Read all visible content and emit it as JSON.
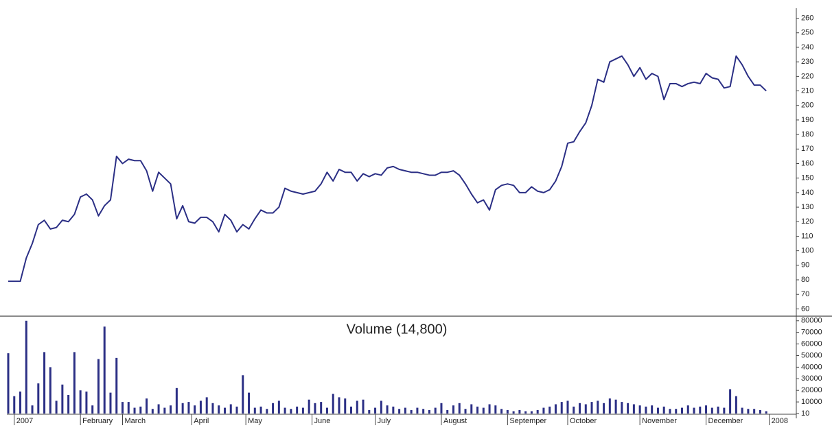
{
  "chart_data": [
    {
      "type": "line",
      "color": "#2b2f85",
      "grid": false,
      "axis_side": "right",
      "xlim": [
        0,
        131
      ],
      "xticks": [
        {
          "value": 1,
          "label": "2007"
        },
        {
          "value": 12,
          "label": "February"
        },
        {
          "value": 19,
          "label": "March"
        },
        {
          "value": 30.5,
          "label": "April"
        },
        {
          "value": 39.5,
          "label": "May"
        },
        {
          "value": 50.5,
          "label": "June"
        },
        {
          "value": 61,
          "label": "July"
        },
        {
          "value": 72,
          "label": "August"
        },
        {
          "value": 83,
          "label": "Septemper"
        },
        {
          "value": 93,
          "label": "October"
        },
        {
          "value": 105,
          "label": "November"
        },
        {
          "value": 116,
          "label": "December"
        },
        {
          "value": 126.5,
          "label": "2008"
        }
      ],
      "ylim": [
        55,
        265
      ],
      "yticks": [
        60,
        70,
        80,
        90,
        100,
        110,
        120,
        130,
        140,
        150,
        160,
        170,
        180,
        190,
        200,
        210,
        220,
        230,
        240,
        250,
        260
      ],
      "values": [
        79,
        79,
        79,
        95,
        105,
        118,
        121,
        115,
        116,
        121,
        120,
        125,
        137,
        139,
        135,
        124,
        131,
        135,
        165,
        160,
        163,
        162,
        162,
        155,
        141,
        154,
        150,
        146,
        122,
        131,
        120,
        119,
        123,
        123,
        120,
        113,
        125,
        121,
        113,
        118,
        115,
        122,
        128,
        126,
        126,
        130,
        143,
        141,
        140,
        139,
        140,
        141,
        146,
        154,
        148,
        156,
        154,
        154,
        148,
        153,
        151,
        153,
        152,
        157,
        158,
        156,
        155,
        154,
        154,
        153,
        152,
        152,
        154,
        154,
        155,
        152,
        146,
        139,
        133,
        135,
        128,
        142,
        145,
        146,
        145,
        140,
        140,
        144,
        141,
        140,
        142,
        148,
        158,
        174,
        175,
        182,
        188,
        200,
        218,
        216,
        230,
        232,
        234,
        228,
        220,
        226,
        218,
        222,
        220,
        204,
        215,
        215,
        213,
        215,
        216,
        215,
        222,
        219,
        218,
        212,
        213,
        234,
        228,
        220,
        214,
        214,
        210
      ]
    },
    {
      "type": "bar",
      "title": "Volume (14,800)",
      "color": "#2b2f85",
      "grid": false,
      "axis_side": "right",
      "xlim": [
        0,
        131
      ],
      "ylim": [
        0,
        84000
      ],
      "yticks": [
        10,
        10000,
        20000,
        30000,
        40000,
        50000,
        60000,
        70000,
        80000
      ],
      "values": [
        52000,
        15000,
        19000,
        80000,
        7000,
        26000,
        53000,
        40000,
        11000,
        25000,
        16000,
        53000,
        20000,
        19000,
        7000,
        47000,
        75000,
        18000,
        48000,
        10000,
        10000,
        5000,
        6000,
        13000,
        4000,
        8000,
        5000,
        7000,
        22000,
        9000,
        10000,
        7000,
        11000,
        14000,
        9000,
        7000,
        5000,
        8000,
        6000,
        33000,
        18000,
        5000,
        6000,
        4000,
        9000,
        11000,
        5000,
        4000,
        6000,
        5000,
        12000,
        9000,
        10000,
        5000,
        17000,
        14000,
        13000,
        6000,
        11000,
        12000,
        3000,
        5000,
        11000,
        7000,
        6000,
        4000,
        5000,
        3000,
        5000,
        4000,
        3000,
        5000,
        9000,
        3000,
        7000,
        9000,
        4000,
        8000,
        6000,
        5000,
        8000,
        7000,
        4000,
        3000,
        2000,
        3000,
        2000,
        2000,
        3000,
        5000,
        6000,
        8000,
        10000,
        11000,
        6000,
        9000,
        8000,
        10000,
        11000,
        9000,
        13000,
        12000,
        10000,
        9000,
        8000,
        7000,
        6000,
        7000,
        5000,
        6000,
        4000,
        4000,
        5000,
        7000,
        5000,
        6000,
        7000,
        5000,
        6000,
        5000,
        21000,
        15000,
        5000,
        4000,
        4000,
        3000,
        2000
      ]
    }
  ]
}
